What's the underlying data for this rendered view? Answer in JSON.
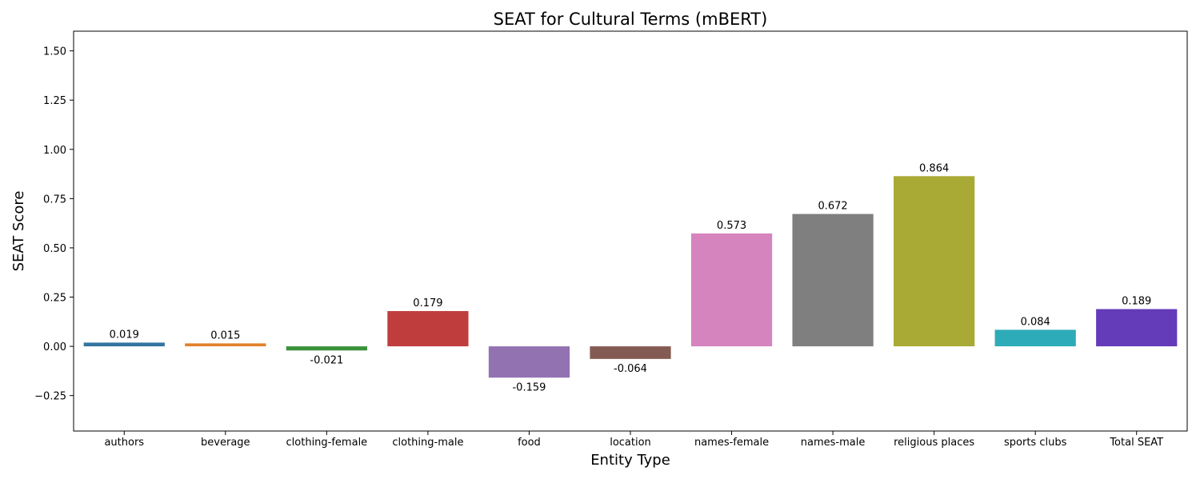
{
  "chart_data": {
    "type": "bar",
    "title": "SEAT for Cultural Terms (mBERT)",
    "xlabel": "Entity Type",
    "ylabel": "SEAT Score",
    "categories": [
      "authors",
      "beverage",
      "clothing-female",
      "clothing-male",
      "food",
      "location",
      "names-female",
      "names-male",
      "religious places",
      "sports clubs",
      "Total SEAT"
    ],
    "values": [
      0.019,
      0.015,
      -0.021,
      0.179,
      -0.159,
      -0.064,
      0.573,
      0.672,
      0.864,
      0.084,
      0.189
    ],
    "value_labels": [
      "0.019",
      "0.015",
      "-0.021",
      "0.179",
      "-0.159",
      "-0.064",
      "0.573",
      "0.672",
      "0.864",
      "0.084",
      "0.189"
    ],
    "colors": [
      "#3274a1",
      "#e1812c",
      "#3a923a",
      "#c03d3e",
      "#9372b2",
      "#845b53",
      "#d684bd",
      "#7f7f7f",
      "#a9aa35",
      "#2eabb8",
      "#643bb9"
    ],
    "ylim": [
      -0.43,
      1.6
    ],
    "yticks": [
      -0.25,
      0.0,
      0.25,
      0.5,
      0.75,
      1.0,
      1.25,
      1.5
    ],
    "ytick_labels": [
      "−0.25",
      "0.00",
      "0.25",
      "0.50",
      "0.75",
      "1.00",
      "1.25",
      "1.50"
    ],
    "grid": false,
    "legend": "none"
  }
}
